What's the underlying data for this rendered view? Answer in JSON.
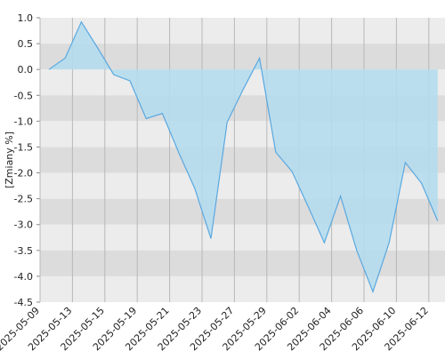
{
  "chart_data": {
    "type": "area",
    "y_label": "[Zmiany %]",
    "categories": [
      "2025-05-09",
      null,
      "2025-05-13",
      null,
      "2025-05-15",
      null,
      "2025-05-19",
      null,
      "2025-05-21",
      null,
      "2025-05-23",
      null,
      "2025-05-27",
      null,
      "2025-05-29",
      null,
      "2025-06-02",
      null,
      "2025-06-04",
      null,
      "2025-06-06",
      null,
      "2025-06-10",
      null,
      "2025-06-12"
    ],
    "values": [
      0.0,
      0.22,
      0.92,
      0.42,
      -0.1,
      -0.22,
      -0.95,
      -0.85,
      -1.6,
      -2.3,
      -3.27,
      -1.02,
      -0.38,
      0.22,
      -1.6,
      -1.97,
      -2.65,
      -3.35,
      -2.45,
      -3.5,
      -4.3,
      -3.35,
      -1.8,
      -2.2,
      -2.93
    ],
    "color": "#5aa8e0",
    "fill": "#b3dcee",
    "ylim": [
      -4.5,
      1.0
    ],
    "yticks": [
      {
        "value": 1.0,
        "label": "1.0"
      },
      {
        "value": 0.5,
        "label": "0.5"
      },
      {
        "value": 0.0,
        "label": "0.0"
      },
      {
        "value": -0.5,
        "label": "-0.5"
      },
      {
        "value": -1.0,
        "label": "-1.0"
      },
      {
        "value": -1.5,
        "label": "-1.5"
      },
      {
        "value": -2.0,
        "label": "-2.0"
      },
      {
        "value": -2.5,
        "label": "-2.5"
      },
      {
        "value": -3.0,
        "label": "-3.0"
      },
      {
        "value": -3.5,
        "label": "-3.5"
      },
      {
        "value": -4.0,
        "label": "-4.0"
      },
      {
        "value": -4.5,
        "label": "-4.5"
      }
    ],
    "grid": true
  }
}
